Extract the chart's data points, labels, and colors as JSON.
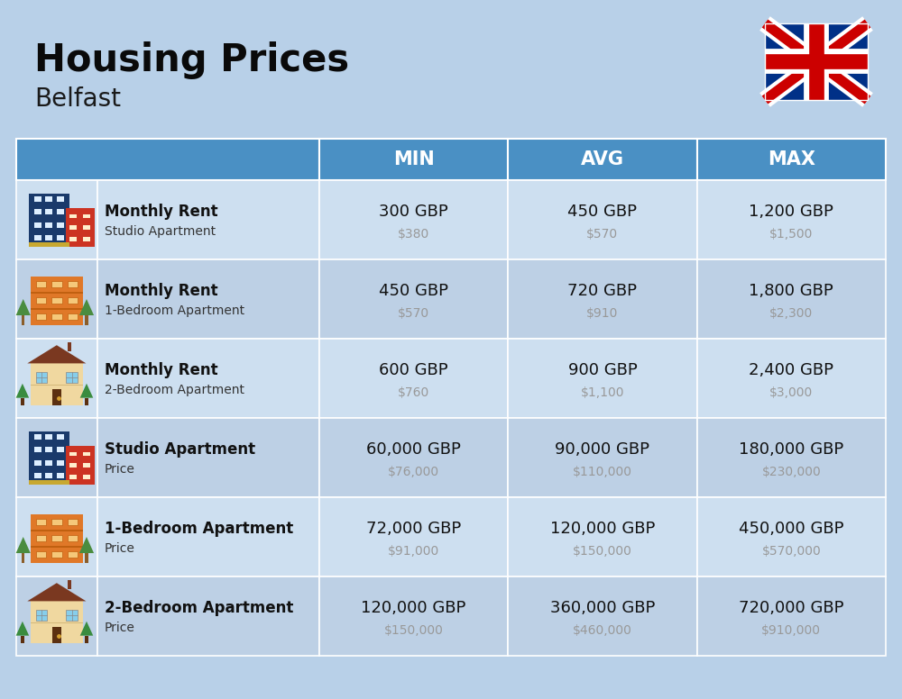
{
  "title": "Housing Prices",
  "subtitle": "Belfast",
  "background_color": "#b8d0e8",
  "header_bg_color": "#4a90c4",
  "header_text_color": "#ffffff",
  "row_bg_even": "#cddff0",
  "row_bg_odd": "#bdd0e5",
  "text_dark": "#111111",
  "text_gray": "#999999",
  "col_headers": [
    "MIN",
    "AVG",
    "MAX"
  ],
  "rows": [
    {
      "bold": "Monthly Rent",
      "sub": "Studio Apartment",
      "min_gbp": "300 GBP",
      "min_usd": "$380",
      "avg_gbp": "450 GBP",
      "avg_usd": "$570",
      "max_gbp": "1,200 GBP",
      "max_usd": "$1,500",
      "icon_type": "blue_red_building"
    },
    {
      "bold": "Monthly Rent",
      "sub": "1-Bedroom Apartment",
      "min_gbp": "450 GBP",
      "min_usd": "$570",
      "avg_gbp": "720 GBP",
      "avg_usd": "$910",
      "max_gbp": "1,800 GBP",
      "max_usd": "$2,300",
      "icon_type": "orange_building"
    },
    {
      "bold": "Monthly Rent",
      "sub": "2-Bedroom Apartment",
      "min_gbp": "600 GBP",
      "min_usd": "$760",
      "avg_gbp": "900 GBP",
      "avg_usd": "$1,100",
      "max_gbp": "2,400 GBP",
      "max_usd": "$3,000",
      "icon_type": "beige_house"
    },
    {
      "bold": "Studio Apartment",
      "sub": "Price",
      "min_gbp": "60,000 GBP",
      "min_usd": "$76,000",
      "avg_gbp": "90,000 GBP",
      "avg_usd": "$110,000",
      "max_gbp": "180,000 GBP",
      "max_usd": "$230,000",
      "icon_type": "blue_red_building"
    },
    {
      "bold": "1-Bedroom Apartment",
      "sub": "Price",
      "min_gbp": "72,000 GBP",
      "min_usd": "$91,000",
      "avg_gbp": "120,000 GBP",
      "avg_usd": "$150,000",
      "max_gbp": "450,000 GBP",
      "max_usd": "$570,000",
      "icon_type": "orange_building"
    },
    {
      "bold": "2-Bedroom Apartment",
      "sub": "Price",
      "min_gbp": "120,000 GBP",
      "min_usd": "$150,000",
      "avg_gbp": "360,000 GBP",
      "avg_usd": "$460,000",
      "max_gbp": "720,000 GBP",
      "max_usd": "$910,000",
      "icon_type": "beige_house"
    }
  ]
}
